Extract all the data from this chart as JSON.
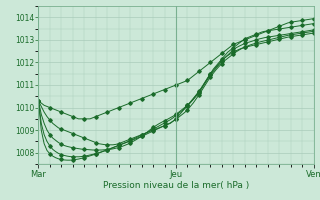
{
  "xlabel": "Pression niveau de la mer( hPa )",
  "ylim": [
    1007.5,
    1014.5
  ],
  "yticks": [
    1008,
    1009,
    1010,
    1011,
    1012,
    1013,
    1014
  ],
  "xtick_labels": [
    "Mar",
    "Jeu",
    "Ven"
  ],
  "xtick_positions": [
    0,
    48,
    96
  ],
  "bg_color": "#cce8d8",
  "grid_color": "#aaccbb",
  "line_color": "#1a6b2a",
  "total_points": 97,
  "lines": [
    [
      1010.3,
      1010.2,
      1010.1,
      1010.05,
      1010.0,
      1009.95,
      1009.9,
      1009.85,
      1009.8,
      1009.75,
      1009.7,
      1009.65,
      1009.6,
      1009.55,
      1009.5,
      1009.5,
      1009.5,
      1009.5,
      1009.5,
      1009.55,
      1009.6,
      1009.65,
      1009.7,
      1009.75,
      1009.8,
      1009.85,
      1009.9,
      1009.95,
      1010.0,
      1010.05,
      1010.1,
      1010.15,
      1010.2,
      1010.25,
      1010.3,
      1010.35,
      1010.4,
      1010.45,
      1010.5,
      1010.55,
      1010.6,
      1010.65,
      1010.7,
      1010.75,
      1010.8,
      1010.85,
      1010.9,
      1010.95,
      1011.0,
      1011.05,
      1011.1,
      1011.15,
      1011.2,
      1011.3,
      1011.4,
      1011.5,
      1011.6,
      1011.7,
      1011.8,
      1011.9,
      1012.0,
      1012.1,
      1012.2,
      1012.3,
      1012.4,
      1012.5,
      1012.6,
      1012.7,
      1012.8,
      1012.85,
      1012.9,
      1012.95,
      1013.0,
      1013.05,
      1013.1,
      1013.15,
      1013.2,
      1013.25,
      1013.3,
      1013.35,
      1013.4,
      1013.45,
      1013.5,
      1013.55,
      1013.6,
      1013.65,
      1013.7,
      1013.75,
      1013.78,
      1013.8,
      1013.82,
      1013.84,
      1013.86,
      1013.88,
      1013.9,
      1013.92,
      1013.94
    ],
    [
      1010.3,
      1010.05,
      1009.8,
      1009.6,
      1009.45,
      1009.3,
      1009.2,
      1009.1,
      1009.05,
      1009.0,
      1008.95,
      1008.9,
      1008.85,
      1008.8,
      1008.75,
      1008.7,
      1008.65,
      1008.6,
      1008.55,
      1008.5,
      1008.45,
      1008.4,
      1008.38,
      1008.36,
      1008.35,
      1008.35,
      1008.35,
      1008.37,
      1008.4,
      1008.45,
      1008.5,
      1008.55,
      1008.6,
      1008.65,
      1008.7,
      1008.75,
      1008.8,
      1008.85,
      1008.9,
      1008.95,
      1009.0,
      1009.05,
      1009.1,
      1009.15,
      1009.2,
      1009.25,
      1009.3,
      1009.4,
      1009.5,
      1009.65,
      1009.8,
      1009.95,
      1010.1,
      1010.25,
      1010.4,
      1010.55,
      1010.7,
      1010.9,
      1011.1,
      1011.3,
      1011.5,
      1011.7,
      1011.85,
      1012.0,
      1012.15,
      1012.3,
      1012.45,
      1012.55,
      1012.65,
      1012.75,
      1012.85,
      1012.95,
      1013.05,
      1013.1,
      1013.15,
      1013.2,
      1013.25,
      1013.3,
      1013.35,
      1013.38,
      1013.4,
      1013.42,
      1013.44,
      1013.46,
      1013.48,
      1013.5,
      1013.52,
      1013.54,
      1013.56,
      1013.58,
      1013.6,
      1013.62,
      1013.64,
      1013.66,
      1013.68,
      1013.7,
      1013.72
    ],
    [
      1010.3,
      1009.7,
      1009.3,
      1009.0,
      1008.8,
      1008.65,
      1008.55,
      1008.45,
      1008.38,
      1008.32,
      1008.28,
      1008.25,
      1008.22,
      1008.2,
      1008.18,
      1008.16,
      1008.15,
      1008.14,
      1008.13,
      1008.12,
      1008.12,
      1008.12,
      1008.12,
      1008.13,
      1008.14,
      1008.15,
      1008.17,
      1008.2,
      1008.23,
      1008.27,
      1008.32,
      1008.37,
      1008.43,
      1008.5,
      1008.57,
      1008.65,
      1008.73,
      1008.82,
      1008.92,
      1009.02,
      1009.12,
      1009.2,
      1009.28,
      1009.35,
      1009.42,
      1009.48,
      1009.55,
      1009.62,
      1009.7,
      1009.8,
      1009.9,
      1010.0,
      1010.1,
      1010.22,
      1010.35,
      1010.5,
      1010.65,
      1010.85,
      1011.05,
      1011.25,
      1011.45,
      1011.6,
      1011.75,
      1011.9,
      1012.05,
      1012.2,
      1012.32,
      1012.44,
      1012.55,
      1012.65,
      1012.72,
      1012.78,
      1012.84,
      1012.88,
      1012.92,
      1012.96,
      1013.0,
      1013.04,
      1013.07,
      1013.1,
      1013.12,
      1013.14,
      1013.16,
      1013.18,
      1013.2,
      1013.22,
      1013.24,
      1013.26,
      1013.28,
      1013.3,
      1013.32,
      1013.34,
      1013.36,
      1013.38,
      1013.4,
      1013.42,
      1013.44
    ],
    [
      1010.3,
      1009.3,
      1008.8,
      1008.5,
      1008.3,
      1008.15,
      1008.05,
      1007.97,
      1007.92,
      1007.88,
      1007.85,
      1007.83,
      1007.82,
      1007.82,
      1007.82,
      1007.83,
      1007.85,
      1007.87,
      1007.9,
      1007.93,
      1007.96,
      1008.0,
      1008.04,
      1008.08,
      1008.12,
      1008.17,
      1008.22,
      1008.27,
      1008.32,
      1008.37,
      1008.42,
      1008.47,
      1008.52,
      1008.57,
      1008.62,
      1008.67,
      1008.72,
      1008.78,
      1008.84,
      1008.9,
      1008.96,
      1009.02,
      1009.08,
      1009.14,
      1009.2,
      1009.26,
      1009.32,
      1009.4,
      1009.48,
      1009.58,
      1009.68,
      1009.78,
      1009.9,
      1010.05,
      1010.2,
      1010.38,
      1010.56,
      1010.76,
      1010.96,
      1011.16,
      1011.36,
      1011.52,
      1011.68,
      1011.82,
      1011.95,
      1012.08,
      1012.18,
      1012.28,
      1012.38,
      1012.47,
      1012.55,
      1012.62,
      1012.68,
      1012.73,
      1012.78,
      1012.82,
      1012.86,
      1012.9,
      1012.93,
      1012.96,
      1012.99,
      1013.02,
      1013.05,
      1013.08,
      1013.11,
      1013.14,
      1013.17,
      1013.2,
      1013.22,
      1013.24,
      1013.26,
      1013.28,
      1013.3,
      1013.32,
      1013.34,
      1013.36,
      1013.38
    ],
    [
      1010.3,
      1009.0,
      1008.4,
      1008.1,
      1007.95,
      1007.85,
      1007.78,
      1007.73,
      1007.7,
      1007.68,
      1007.67,
      1007.67,
      1007.68,
      1007.7,
      1007.72,
      1007.75,
      1007.78,
      1007.82,
      1007.86,
      1007.9,
      1007.94,
      1007.98,
      1008.03,
      1008.08,
      1008.13,
      1008.18,
      1008.23,
      1008.28,
      1008.33,
      1008.38,
      1008.43,
      1008.48,
      1008.54,
      1008.6,
      1008.66,
      1008.72,
      1008.78,
      1008.84,
      1008.9,
      1008.97,
      1009.04,
      1009.11,
      1009.18,
      1009.25,
      1009.32,
      1009.39,
      1009.46,
      1009.55,
      1009.65,
      1009.75,
      1009.85,
      1009.95,
      1010.08,
      1010.22,
      1010.38,
      1010.55,
      1010.72,
      1010.9,
      1011.1,
      1011.3,
      1011.5,
      1011.65,
      1011.8,
      1011.95,
      1012.08,
      1012.2,
      1012.3,
      1012.38,
      1012.45,
      1012.52,
      1012.58,
      1012.63,
      1012.67,
      1012.7,
      1012.73,
      1012.76,
      1012.79,
      1012.82,
      1012.85,
      1012.88,
      1012.91,
      1012.94,
      1012.97,
      1013.0,
      1013.03,
      1013.06,
      1013.09,
      1013.12,
      1013.14,
      1013.16,
      1013.18,
      1013.2,
      1013.22,
      1013.24,
      1013.26,
      1013.28,
      1013.3
    ]
  ]
}
